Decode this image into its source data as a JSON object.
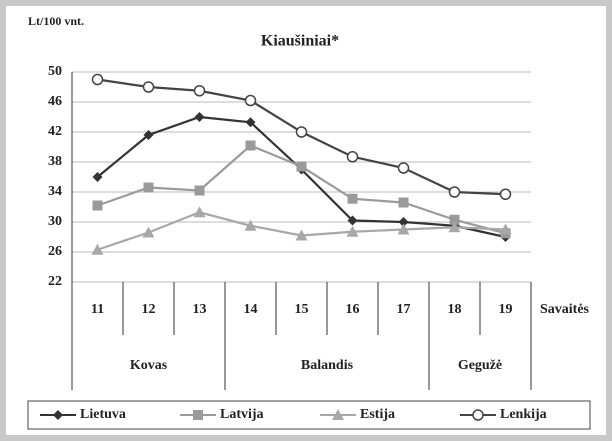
{
  "chart_data": {
    "type": "line",
    "title": "Kiaušiniai*",
    "y_label": "Lt/100 vnt.",
    "x_label": "Savaitės",
    "categories": [
      "11",
      "12",
      "13",
      "14",
      "15",
      "16",
      "17",
      "18",
      "19"
    ],
    "groups": [
      {
        "label": "Kovas",
        "span": 3
      },
      {
        "label": "Balandis",
        "span": 4
      },
      {
        "label": "Gegužė",
        "span": 2
      }
    ],
    "ylim": [
      22,
      50
    ],
    "yticks": [
      22,
      26,
      30,
      34,
      38,
      42,
      46,
      50
    ],
    "grid": true,
    "series": [
      {
        "name": "Lietuva",
        "color": "#333333",
        "marker": "diamond",
        "values": [
          36,
          41.6,
          44,
          43.3,
          37,
          30.2,
          30,
          29.5,
          28
        ]
      },
      {
        "name": "Latvija",
        "color": "#9a9a9a",
        "marker": "square",
        "values": [
          32.2,
          34.6,
          34.2,
          40.2,
          37.4,
          33.1,
          32.6,
          30.3,
          28.5
        ]
      },
      {
        "name": "Estija",
        "color": "#a8a8a8",
        "marker": "triangle",
        "values": [
          26.3,
          28.6,
          31.3,
          29.5,
          28.2,
          28.7,
          29,
          29.3,
          29
        ]
      },
      {
        "name": "Lenkija",
        "color": "#444444",
        "marker": "circle",
        "values": [
          49,
          48,
          47.5,
          46.2,
          42,
          38.7,
          37.2,
          34,
          33.7
        ]
      }
    ]
  }
}
